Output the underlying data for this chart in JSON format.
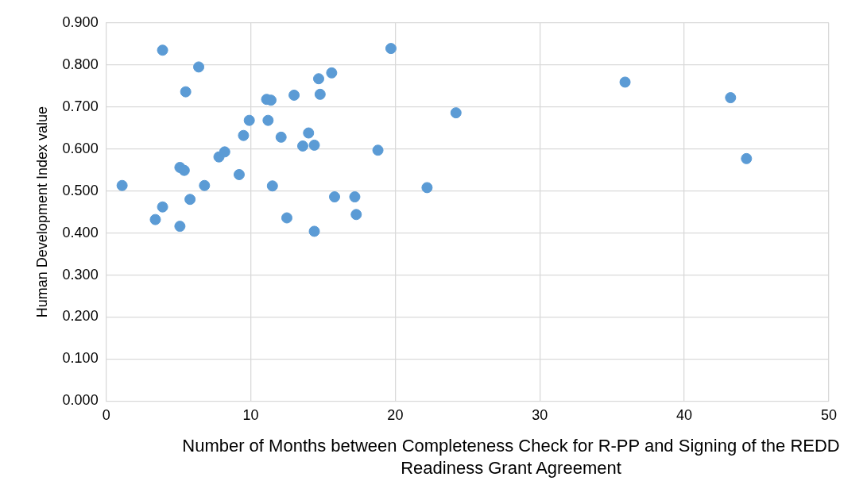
{
  "chart_data": {
    "type": "scatter",
    "xlabel": "Number of Months between Completeness Check for R-PP and Signing of the REDD Readiness Grant Agreement",
    "ylabel": "Human Development Index value",
    "x": [
      1.1,
      3.4,
      3.9,
      3.9,
      5.1,
      5.1,
      5.4,
      5.5,
      5.8,
      6.4,
      6.8,
      7.8,
      8.2,
      9.2,
      9.5,
      9.9,
      11.1,
      11.4,
      11.2,
      11.5,
      12.1,
      12.5,
      13.0,
      13.6,
      14.0,
      14.4,
      14.4,
      14.7,
      14.8,
      15.6,
      15.8,
      17.2,
      17.3,
      18.8,
      19.7,
      22.2,
      24.2,
      35.9,
      43.2,
      44.3
    ],
    "series": [
      {
        "color": "#5b9bd5",
        "values": [
          0.513,
          0.432,
          0.835,
          0.462,
          0.556,
          0.416,
          0.549,
          0.736,
          0.48,
          0.795,
          0.513,
          0.581,
          0.593,
          0.539,
          0.632,
          0.668,
          0.718,
          0.716,
          0.668,
          0.512,
          0.628,
          0.436,
          0.728,
          0.607,
          0.638,
          0.404,
          0.609,
          0.767,
          0.73,
          0.781,
          0.486,
          0.486,
          0.444,
          0.597,
          0.839,
          0.508,
          0.686,
          0.759,
          0.722,
          0.577
        ]
      }
    ],
    "xlim": [
      0,
      50
    ],
    "xticks": [
      0,
      10,
      20,
      30,
      40,
      50
    ],
    "ylim": [
      0,
      0.9
    ],
    "yticks": [
      {
        "value": 0,
        "label": "0.000"
      },
      {
        "value": 0.1,
        "label": "0.100"
      },
      {
        "value": 0.2,
        "label": "0.200"
      },
      {
        "value": 0.3,
        "label": "0.300"
      },
      {
        "value": 0.4,
        "label": "0.400"
      },
      {
        "value": 0.5,
        "label": "0.500"
      },
      {
        "value": 0.6,
        "label": "0.600"
      },
      {
        "value": 0.7,
        "label": "0.700"
      },
      {
        "value": 0.8,
        "label": "0.800"
      },
      {
        "value": 0.9,
        "label": "0.900"
      }
    ],
    "grid": true,
    "marker": "circle",
    "legend": false
  }
}
